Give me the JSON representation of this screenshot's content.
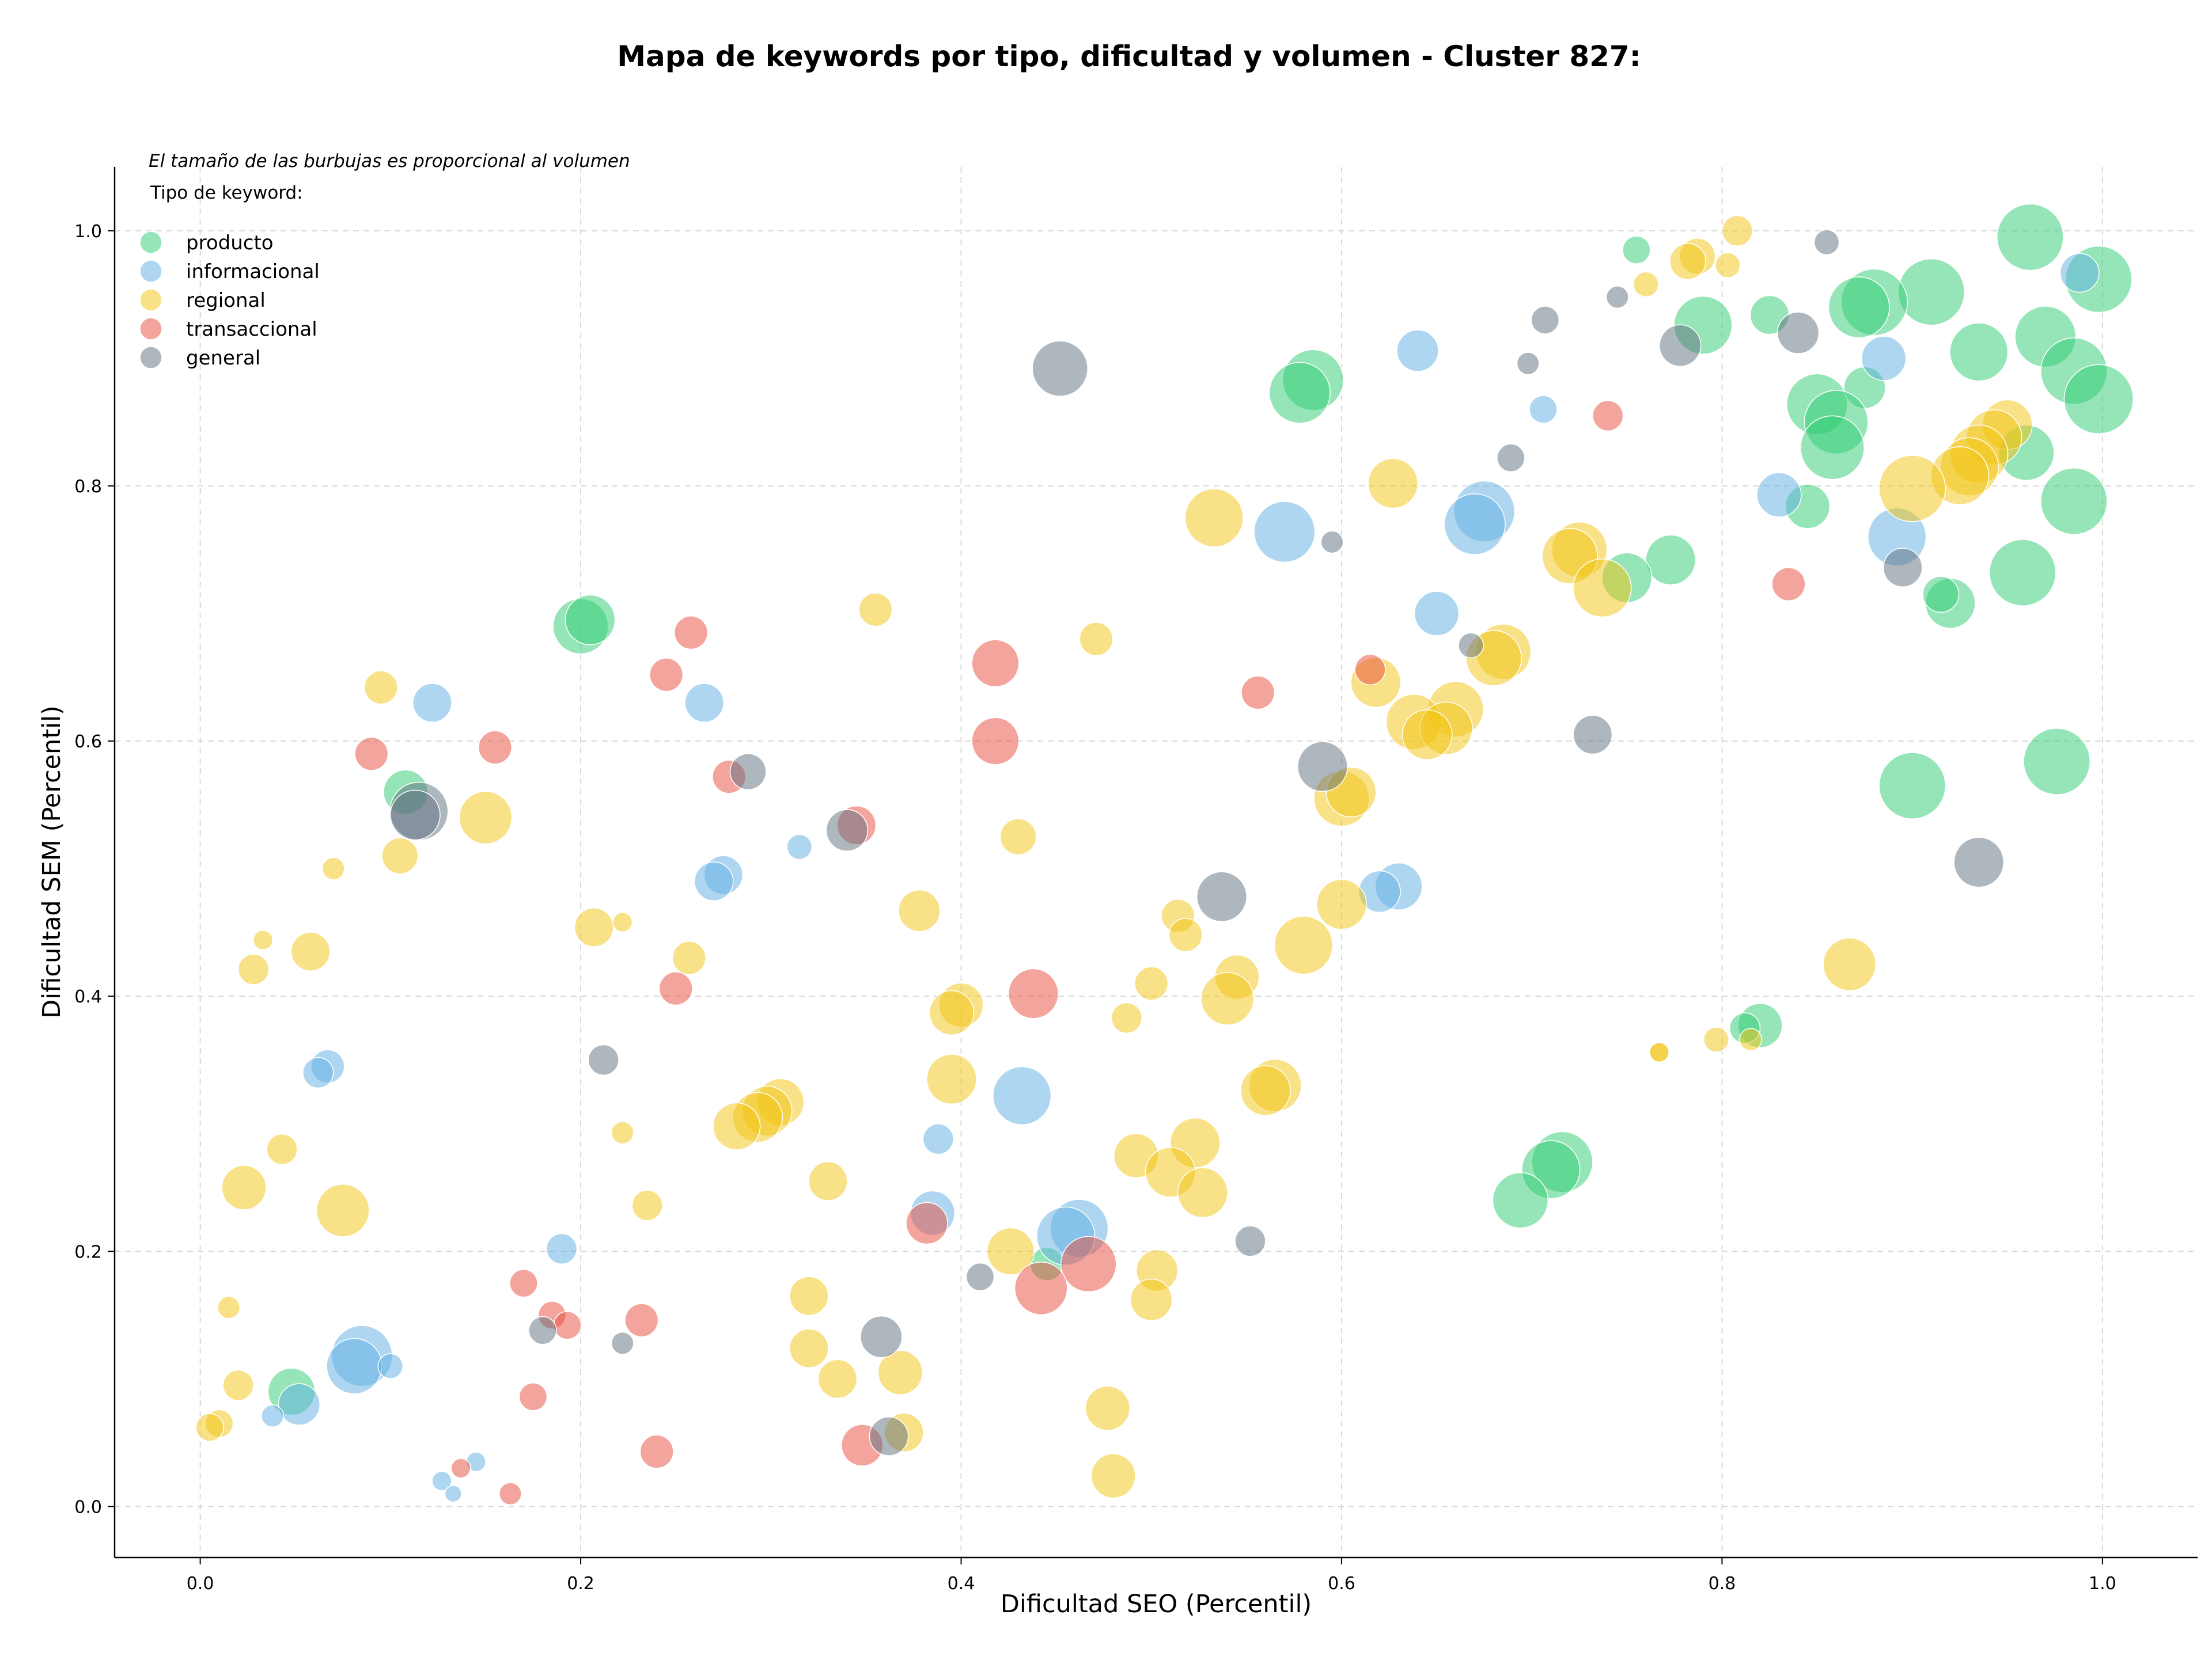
{
  "chart_data": {
    "type": "scatter",
    "title": "Mapa de keywords por tipo, dificultad y volumen - Cluster 827:",
    "subtitle": "El tamaño de las burbujas es proporcional al volumen",
    "xlabel": "Dificultad SEO (Percentil)",
    "ylabel": "Dificultad SEM (Percentil)",
    "xlim": [
      -0.045,
      1.05
    ],
    "ylim": [
      -0.04,
      1.05
    ],
    "xticks": [
      "0.0",
      "0.2",
      "0.4",
      "0.6",
      "0.8",
      "1.0"
    ],
    "yticks": [
      "0.0",
      "0.2",
      "0.4",
      "0.6",
      "0.8",
      "1.0"
    ],
    "grid": true,
    "legend": {
      "title": "Tipo de keyword:",
      "placement": "top-left"
    },
    "series": [
      {
        "name": "producto",
        "color": "#2ecc71",
        "points": [
          [
            0.962,
            0.995,
            2.4
          ],
          [
            0.998,
            0.962,
            2.4
          ],
          [
            0.91,
            0.952,
            2.4
          ],
          [
            0.88,
            0.944,
            2.4
          ],
          [
            0.872,
            0.94,
            2.2
          ],
          [
            0.935,
            0.905,
            2.1
          ],
          [
            0.79,
            0.926,
            2.1
          ],
          [
            0.825,
            0.934,
            1.4
          ],
          [
            0.755,
            0.985,
            1.0
          ],
          [
            0.97,
            0.917,
            2.2
          ],
          [
            0.985,
            0.89,
            2.4
          ],
          [
            0.998,
            0.868,
            2.5
          ],
          [
            0.85,
            0.864,
            2.2
          ],
          [
            0.875,
            0.877,
            1.5
          ],
          [
            0.86,
            0.85,
            2.3
          ],
          [
            0.858,
            0.83,
            2.3
          ],
          [
            0.845,
            0.784,
            1.6
          ],
          [
            0.96,
            0.826,
            2.0
          ],
          [
            0.985,
            0.788,
            2.4
          ],
          [
            0.958,
            0.732,
            2.4
          ],
          [
            0.92,
            0.708,
            1.8
          ],
          [
            0.915,
            0.715,
            1.3
          ],
          [
            0.773,
            0.742,
            1.8
          ],
          [
            0.75,
            0.728,
            1.8
          ],
          [
            0.585,
            0.883,
            2.2
          ],
          [
            0.578,
            0.873,
            2.2
          ],
          [
            0.2,
            0.69,
            2.0
          ],
          [
            0.205,
            0.695,
            1.8
          ],
          [
            0.108,
            0.56,
            1.6
          ],
          [
            0.9,
            0.565,
            2.4
          ],
          [
            0.976,
            0.584,
            2.4
          ],
          [
            0.82,
            0.377,
            1.6
          ],
          [
            0.812,
            0.375,
            1.1
          ],
          [
            0.716,
            0.27,
            2.2
          ],
          [
            0.71,
            0.264,
            2.1
          ],
          [
            0.694,
            0.24,
            2.0
          ],
          [
            0.048,
            0.09,
            1.7
          ],
          [
            0.445,
            0.19,
            1.2
          ]
        ]
      },
      {
        "name": "informacional",
        "color": "#5dade2",
        "points": [
          [
            0.988,
            0.967,
            1.4
          ],
          [
            0.885,
            0.9,
            1.6
          ],
          [
            0.64,
            0.906,
            1.5
          ],
          [
            0.706,
            0.86,
            1.0
          ],
          [
            0.675,
            0.78,
            2.2
          ],
          [
            0.67,
            0.77,
            2.2
          ],
          [
            0.57,
            0.764,
            2.2
          ],
          [
            0.83,
            0.793,
            1.6
          ],
          [
            0.892,
            0.76,
            2.1
          ],
          [
            0.65,
            0.7,
            1.6
          ],
          [
            0.122,
            0.63,
            1.4
          ],
          [
            0.265,
            0.63,
            1.4
          ],
          [
            0.275,
            0.495,
            1.4
          ],
          [
            0.27,
            0.49,
            1.4
          ],
          [
            0.315,
            0.517,
            0.9
          ],
          [
            0.63,
            0.486,
            1.7
          ],
          [
            0.62,
            0.482,
            1.5
          ],
          [
            0.067,
            0.345,
            1.2
          ],
          [
            0.062,
            0.34,
            1.1
          ],
          [
            0.432,
            0.322,
            2.1
          ],
          [
            0.388,
            0.288,
            1.1
          ],
          [
            0.385,
            0.23,
            1.6
          ],
          [
            0.462,
            0.218,
            2.1
          ],
          [
            0.455,
            0.212,
            2.1
          ],
          [
            0.19,
            0.202,
            1.1
          ],
          [
            0.085,
            0.118,
            2.2
          ],
          [
            0.081,
            0.11,
            2.0
          ],
          [
            0.1,
            0.11,
            0.9
          ],
          [
            0.052,
            0.08,
            1.5
          ],
          [
            0.038,
            0.071,
            0.8
          ],
          [
            0.145,
            0.035,
            0.7
          ],
          [
            0.127,
            0.02,
            0.7
          ],
          [
            0.133,
            0.01,
            0.6
          ]
        ]
      },
      {
        "name": "regional",
        "color": "#f1c40f",
        "points": [
          [
            0.808,
            1.0,
            1.1
          ],
          [
            0.787,
            0.98,
            1.3
          ],
          [
            0.782,
            0.976,
            1.3
          ],
          [
            0.76,
            0.958,
            0.9
          ],
          [
            0.803,
            0.973,
            0.9
          ],
          [
            0.95,
            0.848,
            1.8
          ],
          [
            0.943,
            0.838,
            2.0
          ],
          [
            0.935,
            0.825,
            2.1
          ],
          [
            0.93,
            0.815,
            2.1
          ],
          [
            0.925,
            0.808,
            2.1
          ],
          [
            0.9,
            0.798,
            2.4
          ],
          [
            0.627,
            0.802,
            1.8
          ],
          [
            0.533,
            0.775,
            2.1
          ],
          [
            0.725,
            0.75,
            2.0
          ],
          [
            0.72,
            0.745,
            2.0
          ],
          [
            0.737,
            0.72,
            2.1
          ],
          [
            0.355,
            0.703,
            1.2
          ],
          [
            0.471,
            0.68,
            1.2
          ],
          [
            0.685,
            0.67,
            2.0
          ],
          [
            0.68,
            0.665,
            2.0
          ],
          [
            0.618,
            0.646,
            1.8
          ],
          [
            0.66,
            0.625,
            2.0
          ],
          [
            0.638,
            0.615,
            2.0
          ],
          [
            0.655,
            0.61,
            1.9
          ],
          [
            0.645,
            0.605,
            1.8
          ],
          [
            0.095,
            0.642,
            1.2
          ],
          [
            0.15,
            0.54,
            1.9
          ],
          [
            0.105,
            0.51,
            1.3
          ],
          [
            0.07,
            0.5,
            0.8
          ],
          [
            0.6,
            0.555,
            2.0
          ],
          [
            0.605,
            0.56,
            1.8
          ],
          [
            0.43,
            0.525,
            1.3
          ],
          [
            0.6,
            0.472,
            1.8
          ],
          [
            0.378,
            0.467,
            1.5
          ],
          [
            0.514,
            0.463,
            1.2
          ],
          [
            0.518,
            0.448,
            1.2
          ],
          [
            0.058,
            0.435,
            1.4
          ],
          [
            0.033,
            0.444,
            0.7
          ],
          [
            0.028,
            0.421,
            1.1
          ],
          [
            0.207,
            0.454,
            1.4
          ],
          [
            0.222,
            0.458,
            0.7
          ],
          [
            0.257,
            0.43,
            1.2
          ],
          [
            0.58,
            0.44,
            2.1
          ],
          [
            0.545,
            0.415,
            1.6
          ],
          [
            0.54,
            0.398,
            1.9
          ],
          [
            0.5,
            0.41,
            1.2
          ],
          [
            0.487,
            0.383,
            1.1
          ],
          [
            0.4,
            0.393,
            1.6
          ],
          [
            0.395,
            0.387,
            1.6
          ],
          [
            0.867,
            0.425,
            1.9
          ],
          [
            0.797,
            0.366,
            0.9
          ],
          [
            0.815,
            0.366,
            0.8
          ],
          [
            0.767,
            0.356,
            0.7
          ],
          [
            0.395,
            0.335,
            1.8
          ],
          [
            0.565,
            0.33,
            1.9
          ],
          [
            0.56,
            0.326,
            1.8
          ],
          [
            0.043,
            0.28,
            1.1
          ],
          [
            0.222,
            0.293,
            0.8
          ],
          [
            0.305,
            0.317,
            1.7
          ],
          [
            0.298,
            0.31,
            1.8
          ],
          [
            0.293,
            0.305,
            1.8
          ],
          [
            0.282,
            0.298,
            1.7
          ],
          [
            0.523,
            0.285,
            1.8
          ],
          [
            0.492,
            0.275,
            1.6
          ],
          [
            0.51,
            0.262,
            1.8
          ],
          [
            0.527,
            0.246,
            1.8
          ],
          [
            0.023,
            0.25,
            1.6
          ],
          [
            0.075,
            0.232,
            1.9
          ],
          [
            0.235,
            0.236,
            1.1
          ],
          [
            0.33,
            0.255,
            1.4
          ],
          [
            0.426,
            0.2,
            1.7
          ],
          [
            0.503,
            0.185,
            1.5
          ],
          [
            0.5,
            0.162,
            1.5
          ],
          [
            0.32,
            0.165,
            1.4
          ],
          [
            0.015,
            0.156,
            0.8
          ],
          [
            0.32,
            0.124,
            1.4
          ],
          [
            0.335,
            0.1,
            1.4
          ],
          [
            0.368,
            0.105,
            1.6
          ],
          [
            0.02,
            0.095,
            1.1
          ],
          [
            0.01,
            0.065,
            1.0
          ],
          [
            0.005,
            0.062,
            1.0
          ],
          [
            0.37,
            0.058,
            1.4
          ],
          [
            0.477,
            0.077,
            1.6
          ],
          [
            0.48,
            0.024,
            1.6
          ],
          [
            0.767,
            0.356,
            0.7
          ]
        ]
      },
      {
        "name": "transaccional",
        "color": "#e74c3c",
        "points": [
          [
            0.74,
            0.855,
            1.1
          ],
          [
            0.835,
            0.723,
            1.2
          ],
          [
            0.258,
            0.685,
            1.2
          ],
          [
            0.245,
            0.652,
            1.2
          ],
          [
            0.418,
            0.661,
            1.7
          ],
          [
            0.418,
            0.6,
            1.7
          ],
          [
            0.615,
            0.656,
            1.1
          ],
          [
            0.556,
            0.638,
            1.2
          ],
          [
            0.09,
            0.59,
            1.2
          ],
          [
            0.155,
            0.595,
            1.2
          ],
          [
            0.278,
            0.572,
            1.2
          ],
          [
            0.345,
            0.534,
            1.4
          ],
          [
            0.25,
            0.406,
            1.2
          ],
          [
            0.438,
            0.402,
            1.8
          ],
          [
            0.382,
            0.222,
            1.5
          ],
          [
            0.467,
            0.19,
            2.0
          ],
          [
            0.442,
            0.171,
            1.9
          ],
          [
            0.17,
            0.175,
            1.0
          ],
          [
            0.185,
            0.15,
            1.0
          ],
          [
            0.193,
            0.142,
            1.0
          ],
          [
            0.232,
            0.146,
            1.2
          ],
          [
            0.175,
            0.086,
            1.0
          ],
          [
            0.24,
            0.043,
            1.2
          ],
          [
            0.348,
            0.048,
            1.5
          ],
          [
            0.137,
            0.03,
            0.7
          ],
          [
            0.163,
            0.01,
            0.8
          ]
        ]
      },
      {
        "name": "general",
        "color": "#5d6d7e",
        "points": [
          [
            0.855,
            0.991,
            0.9
          ],
          [
            0.745,
            0.948,
            0.8
          ],
          [
            0.707,
            0.93,
            1.0
          ],
          [
            0.698,
            0.896,
            0.8
          ],
          [
            0.778,
            0.91,
            1.5
          ],
          [
            0.84,
            0.92,
            1.5
          ],
          [
            0.452,
            0.892,
            2.0
          ],
          [
            0.689,
            0.822,
            1.0
          ],
          [
            0.595,
            0.756,
            0.8
          ],
          [
            0.895,
            0.736,
            1.4
          ],
          [
            0.668,
            0.675,
            0.9
          ],
          [
            0.732,
            0.605,
            1.4
          ],
          [
            0.59,
            0.58,
            1.8
          ],
          [
            0.288,
            0.576,
            1.3
          ],
          [
            0.115,
            0.545,
            2.1
          ],
          [
            0.113,
            0.542,
            1.8
          ],
          [
            0.34,
            0.53,
            1.5
          ],
          [
            0.935,
            0.505,
            1.8
          ],
          [
            0.537,
            0.478,
            1.8
          ],
          [
            0.212,
            0.35,
            1.1
          ],
          [
            0.552,
            0.208,
            1.1
          ],
          [
            0.41,
            0.18,
            1.0
          ],
          [
            0.18,
            0.138,
            1.0
          ],
          [
            0.222,
            0.128,
            0.8
          ],
          [
            0.358,
            0.133,
            1.5
          ],
          [
            0.362,
            0.055,
            1.4
          ]
        ]
      }
    ]
  }
}
